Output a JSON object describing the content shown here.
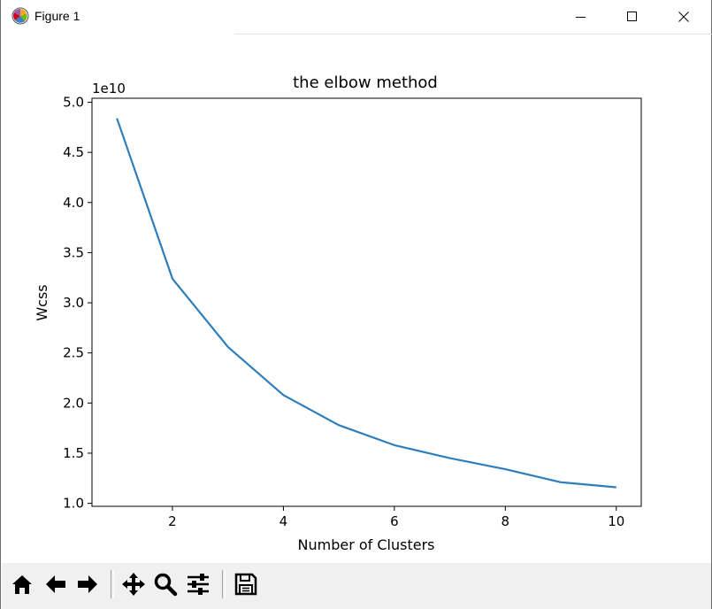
{
  "window": {
    "title": "Figure 1"
  },
  "toolbar": {
    "buttons": [
      "home-icon",
      "back-arrow-icon",
      "forward-arrow-icon",
      "pan-icon",
      "zoom-icon",
      "configure-subplots-icon",
      "save-icon"
    ]
  },
  "colors": {
    "line": "#2e7ebc",
    "axes": "#000000",
    "background": "#ffffff"
  },
  "chart_data": {
    "type": "line",
    "title": "the elbow method",
    "xlabel": "Number of Clusters",
    "ylabel": "Wcss",
    "y_offset_label": "1e10",
    "xlim": [
      0.55,
      10.45
    ],
    "ylim": [
      0.97,
      5.04
    ],
    "x_ticks": [
      2,
      4,
      6,
      8,
      10
    ],
    "x_tick_labels": [
      "2",
      "4",
      "6",
      "8",
      "10"
    ],
    "y_ticks": [
      1.0,
      1.5,
      2.0,
      2.5,
      3.0,
      3.5,
      4.0,
      4.5,
      5.0
    ],
    "y_tick_labels": [
      "1.0",
      "1.5",
      "2.0",
      "2.5",
      "3.0",
      "3.5",
      "4.0",
      "4.5",
      "5.0"
    ],
    "grid": false,
    "series": [
      {
        "x": [
          1,
          2,
          3,
          4,
          5,
          6,
          7,
          8,
          9,
          10
        ],
        "values": [
          4.84,
          3.24,
          2.56,
          2.08,
          1.78,
          1.58,
          1.45,
          1.34,
          1.21,
          1.16
        ]
      }
    ]
  }
}
